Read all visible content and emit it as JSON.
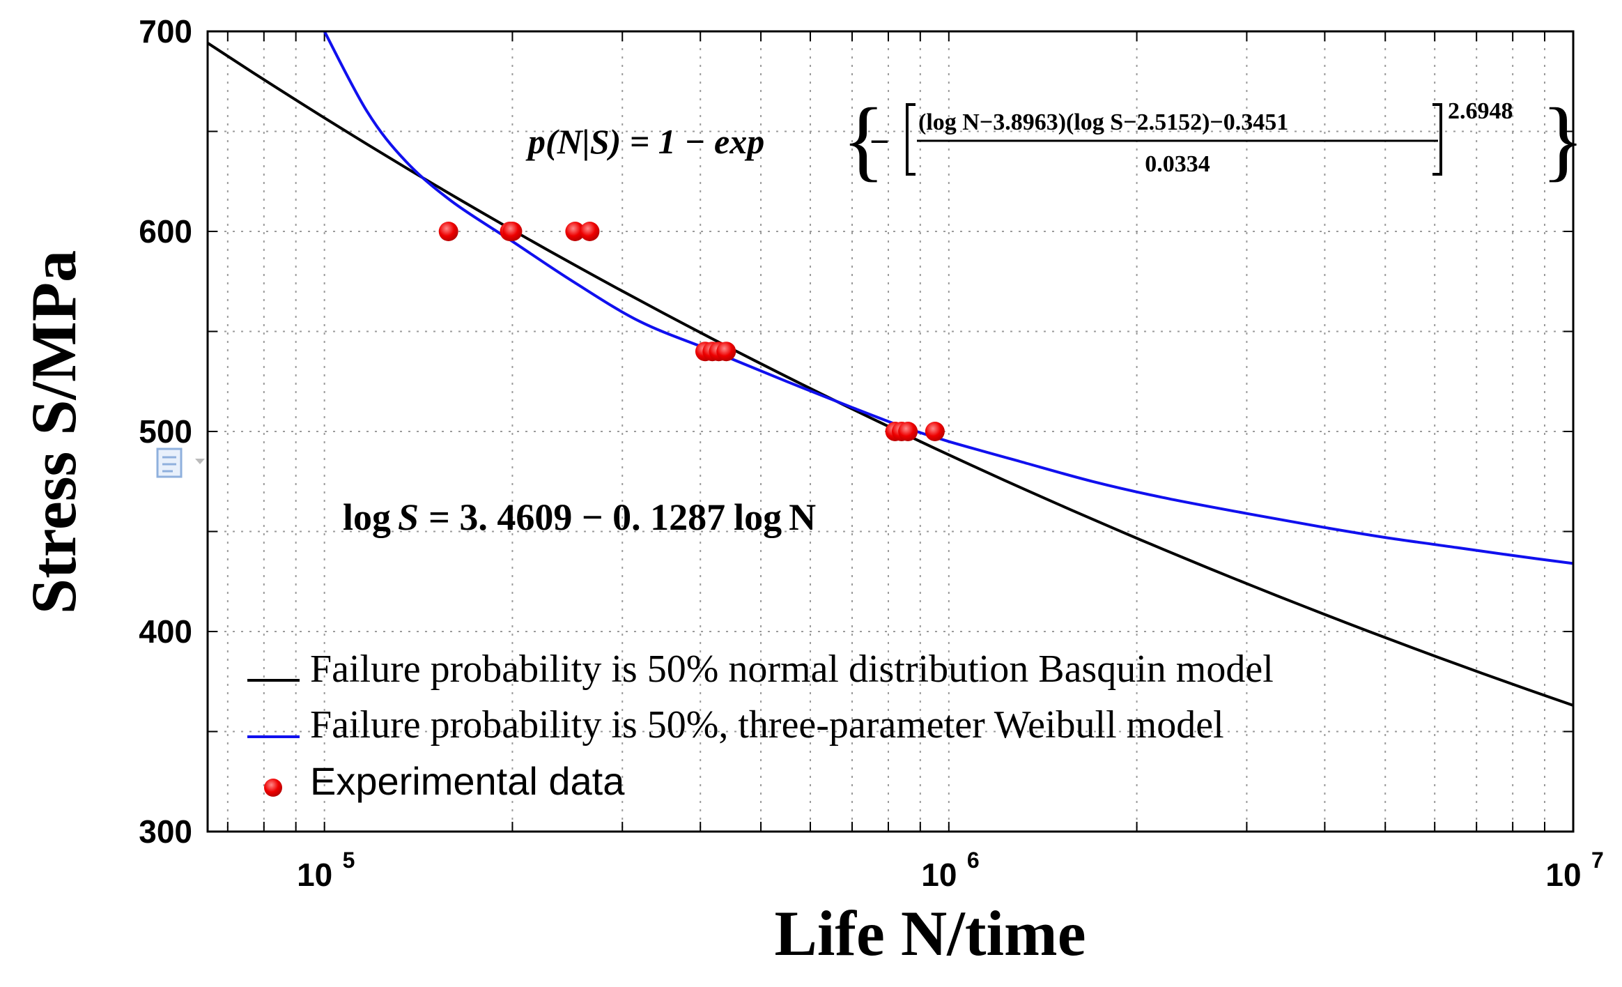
{
  "chart_data": {
    "type": "line",
    "title": "",
    "xlabel": "Life N/time",
    "ylabel": "Stress S/MPa",
    "xscale": "log",
    "xlim": [
      65000,
      10000000
    ],
    "ylim": [
      300,
      700
    ],
    "x_ticks": [
      {
        "value": 100000,
        "base": "10",
        "exp": "5"
      },
      {
        "value": 1000000,
        "base": "10",
        "exp": "6"
      },
      {
        "value": 10000000,
        "base": "10",
        "exp": "7"
      }
    ],
    "y_ticks": [
      "700",
      "600",
      "500",
      "400",
      "300"
    ],
    "grid": true,
    "legend_position": "bottom-left",
    "series": [
      {
        "name": "Failure probability is 50% normal distribution Basquin model",
        "kind": "line",
        "color": "#000000",
        "model": {
          "form": "logS = 3.4609 - 0.1287 logN",
          "a": 3.4609,
          "b": 0.1287
        }
      },
      {
        "name": "Failure probability is 50%, three-parameter Weibull model",
        "kind": "line",
        "color": "#1010ee",
        "points": [
          [
            100000,
            700
          ],
          [
            117000,
            660
          ],
          [
            135000,
            635
          ],
          [
            160000,
            615
          ],
          [
            200000,
            595
          ],
          [
            250000,
            575
          ],
          [
            320000,
            555
          ],
          [
            420000,
            540
          ],
          [
            550000,
            525
          ],
          [
            700000,
            512
          ],
          [
            850000,
            502
          ],
          [
            1000000,
            495
          ],
          [
            1300000,
            485
          ],
          [
            1700000,
            475
          ],
          [
            2200000,
            467
          ],
          [
            3000000,
            459
          ],
          [
            4000000,
            452
          ],
          [
            5000000,
            447
          ],
          [
            6500000,
            442
          ],
          [
            8000000,
            438
          ],
          [
            10000000,
            434
          ]
        ]
      },
      {
        "name": "Experimental data",
        "kind": "scatter",
        "color": "#ee0000",
        "points": [
          [
            158000,
            600
          ],
          [
            198000,
            600
          ],
          [
            200000,
            600
          ],
          [
            252000,
            600
          ],
          [
            266000,
            600
          ],
          [
            407000,
            540
          ],
          [
            418000,
            540
          ],
          [
            428000,
            540
          ],
          [
            440000,
            540
          ],
          [
            820000,
            500
          ],
          [
            840000,
            500
          ],
          [
            860000,
            500
          ],
          [
            950000,
            500
          ]
        ]
      }
    ],
    "annotations": {
      "basquin_equation": {
        "lhs_log": "log",
        "lhs_S": "S",
        "rhs": "= 3. 4609 − 0. 1287",
        "rhs_log": "log",
        "rhs_N": "N"
      },
      "weibull_equation": {
        "lhs": "p(N|S) = 1 − exp",
        "minus": "−",
        "numerator": "(log N−3.8963)(log S−2.5152)−0.3451",
        "denominator": "0.0334",
        "exponent": "2.6948"
      }
    }
  }
}
